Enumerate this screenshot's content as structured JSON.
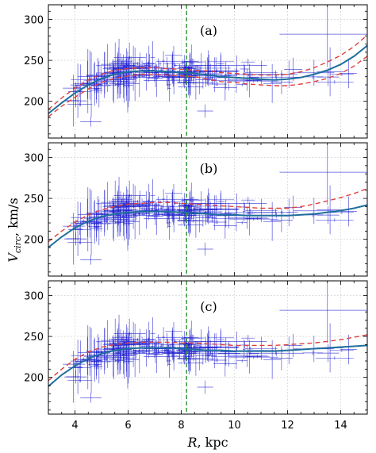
{
  "axis_labels": {
    "xlabel_var": "R",
    "xlabel_unit": ", kpc",
    "ylabel_var": "V",
    "ylabel_sub": "circ",
    "ylabel_unit": ", km/s"
  },
  "colors": {
    "points": "#1f1fd0",
    "fit": "#1f6f9c",
    "bounds": "#e0403c",
    "vline": "#3a9a3a"
  },
  "chart_data": [
    {
      "type": "scatter",
      "panel_label": "(a)",
      "xlim": [
        3,
        15
      ],
      "ylim": [
        155,
        318
      ],
      "xticks": [
        4,
        6,
        8,
        10,
        12,
        14
      ],
      "yticks": [
        200,
        250,
        300
      ],
      "sun_R": 8.2,
      "fit": {
        "x": [
          3.0,
          3.5,
          4.0,
          4.5,
          5.0,
          5.5,
          6.0,
          6.5,
          7.0,
          7.5,
          8.0,
          8.5,
          9.0,
          9.5,
          10.0,
          10.5,
          11.0,
          11.5,
          12.0,
          12.5,
          13.0,
          13.5,
          14.0,
          14.5,
          15.0
        ],
        "y": [
          185,
          198,
          210,
          220,
          228,
          233,
          236,
          237,
          237,
          236,
          235,
          234,
          232,
          230,
          229,
          228,
          227,
          226,
          227,
          229,
          233,
          238,
          245,
          255,
          268
        ]
      },
      "upper": [
        190,
        204,
        216,
        226,
        233,
        238,
        240,
        241,
        241,
        240,
        239,
        238,
        237,
        235,
        234,
        233,
        232,
        232,
        233,
        236,
        241,
        248,
        256,
        267,
        281
      ],
      "lower": [
        181,
        194,
        205,
        215,
        223,
        228,
        231,
        233,
        233,
        232,
        231,
        230,
        227,
        224,
        223,
        221,
        220,
        219,
        219,
        221,
        224,
        228,
        234,
        243,
        255
      ]
    },
    {
      "type": "scatter",
      "panel_label": "(b)",
      "xlim": [
        3,
        15
      ],
      "ylim": [
        155,
        318
      ],
      "xticks": [
        4,
        6,
        8,
        10,
        12,
        14
      ],
      "yticks": [
        200,
        250,
        300
      ],
      "sun_R": 8.2,
      "fit": {
        "x": [
          3.0,
          3.5,
          4.0,
          4.5,
          5.0,
          5.5,
          6.0,
          6.5,
          7.0,
          7.5,
          8.0,
          8.5,
          9.0,
          9.5,
          10.0,
          10.5,
          11.0,
          11.5,
          12.0,
          12.5,
          13.0,
          13.5,
          14.0,
          14.5,
          15.0
        ],
        "y": [
          190,
          203,
          214,
          222,
          228,
          231,
          233,
          234,
          234,
          234,
          233,
          232,
          231,
          230,
          230,
          229,
          229,
          229,
          229,
          230,
          231,
          233,
          235,
          238,
          242
        ]
      },
      "upper": [
        197,
        210,
        221,
        230,
        236,
        240,
        243,
        244,
        245,
        245,
        244,
        243,
        242,
        241,
        240,
        239,
        238,
        238,
        238,
        240,
        243,
        247,
        251,
        256,
        262
      ]
    },
    {
      "type": "scatter",
      "panel_label": "(c)",
      "xlim": [
        3,
        15
      ],
      "ylim": [
        155,
        318
      ],
      "xticks": [
        4,
        6,
        8,
        10,
        12,
        14
      ],
      "yticks": [
        200,
        250,
        300
      ],
      "sun_R": 8.2,
      "fit": {
        "x": [
          3.0,
          3.5,
          4.0,
          4.5,
          5.0,
          5.5,
          6.0,
          6.5,
          7.0,
          7.5,
          8.0,
          8.5,
          9.0,
          9.5,
          10.0,
          10.5,
          11.0,
          11.5,
          12.0,
          12.5,
          13.0,
          13.5,
          14.0,
          14.5,
          15.0
        ],
        "y": [
          189,
          203,
          214,
          223,
          229,
          233,
          235,
          236,
          236,
          236,
          235,
          234,
          233,
          233,
          232,
          232,
          232,
          232,
          233,
          234,
          235,
          236,
          237,
          238,
          239
        ]
      },
      "upper": [
        196,
        210,
        222,
        231,
        237,
        240,
        242,
        243,
        243,
        243,
        242,
        242,
        241,
        240,
        239,
        239,
        239,
        239,
        240,
        241,
        242,
        244,
        246,
        249,
        252
      ]
    }
  ]
}
